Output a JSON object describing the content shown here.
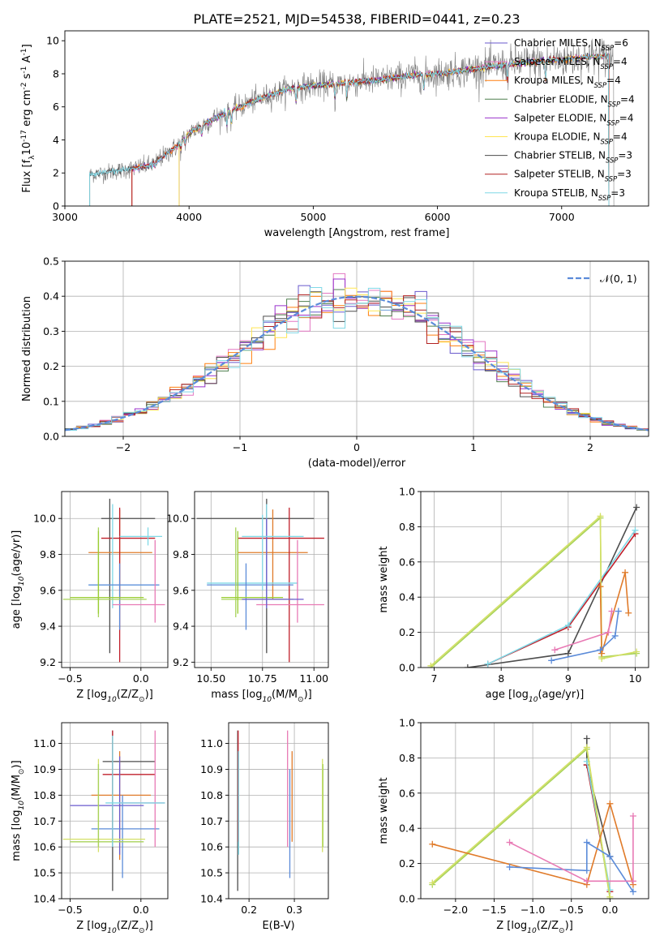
{
  "figure": {
    "title": "PLATE=2521, MJD=54538, FIBERID=0441, z=0.23"
  },
  "colors": {
    "data": "#808080",
    "model_palette": [
      "#6a5acd",
      "#e377c2",
      "#ff7f0e",
      "#4e7f4e",
      "#9932cc",
      "#ffe552",
      "#4d4d4d",
      "#b22222",
      "#7fd8e6"
    ],
    "gauss": "#5b8bd9",
    "scatter_palette": [
      "#5b8bd9",
      "#e87ab5",
      "#e07b2a",
      "#a8d35a",
      "#d4e066",
      "#c4e57f",
      "#4d4d4d",
      "#c0202b",
      "#7fd8e6",
      "#9acd32",
      "#6a5acd"
    ]
  },
  "chart_data": [
    {
      "id": "spectrum",
      "type": "line",
      "xlabel": "wavelength [Angstrom, rest frame]",
      "ylabel": "Flux [f$_\\lambda$10$^{-17}$ erg cm$^{-2}$ s$^{-1}$ A$^{-1}$]",
      "xlim": [
        3000,
        7700
      ],
      "ylim": [
        0,
        10.6
      ],
      "xticks": [
        3000,
        4000,
        5000,
        6000,
        7000
      ],
      "yticks": [
        0,
        2,
        4,
        6,
        8,
        10
      ],
      "legend_position": "right",
      "series": [
        {
          "name": "Chabrier MILES, N$_{SSP}$=6"
        },
        {
          "name": "Salpeter MILES, N$_{SSP}$=4"
        },
        {
          "name": "Kroupa MILES, N$_{SSP}$=4"
        },
        {
          "name": "Chabrier ELODIE, N$_{SSP}$=4"
        },
        {
          "name": "Salpeter ELODIE, N$_{SSP}$=4"
        },
        {
          "name": "Kroupa ELODIE, N$_{SSP}$=4"
        },
        {
          "name": "Chabrier STELIB, N$_{SSP}$=3"
        },
        {
          "name": "Salpeter STELIB, N$_{SSP}$=3"
        },
        {
          "name": "Kroupa STELIB, N$_{SSP}$=3"
        }
      ],
      "continuum": {
        "x": [
          3200,
          3500,
          3700,
          3900,
          4000,
          4200,
          4500,
          4800,
          5000,
          5200,
          5500,
          5800,
          6000,
          6300,
          6600,
          6900,
          7200,
          7400
        ],
        "y": [
          1.9,
          2.2,
          2.5,
          3.6,
          4.4,
          5.3,
          6.3,
          7.1,
          7.3,
          7.4,
          7.6,
          7.9,
          8.0,
          8.3,
          8.6,
          8.8,
          9.0,
          9.1
        ]
      },
      "model_starts": [
        3540,
        3540,
        3540,
        3920,
        3920,
        3920,
        3200,
        3540,
        3200
      ]
    },
    {
      "id": "residuals",
      "type": "line",
      "xlabel": "(data-model)/error",
      "ylabel": "Normed distribution",
      "xlim": [
        -2.5,
        2.5
      ],
      "ylim": [
        0,
        0.5
      ],
      "xticks": [
        -2,
        -1,
        0,
        1,
        2
      ],
      "yticks": [
        0.0,
        0.1,
        0.2,
        0.3,
        0.4,
        0.5
      ],
      "legend": "$\\mathcal{N}(0, 1)$",
      "legend_position": "top-right",
      "bin_width": 0.1,
      "gaussian": {
        "mu": 0,
        "sigma": 1
      }
    },
    {
      "id": "age_vs_Z",
      "type": "scatter",
      "xlabel": "Z [log$_{10}$(Z/Z$_\\odot$)]",
      "ylabel": "age  [log$_{10}$(age/yr)]",
      "xlim": [
        -0.56,
        0.19
      ],
      "ylim": [
        9.17,
        10.15
      ],
      "xticks": [
        -0.5,
        0.0
      ],
      "yticks": [
        9.2,
        9.4,
        9.6,
        9.8,
        10.0
      ],
      "points": [
        {
          "x": -0.22,
          "y": 10.0,
          "xlo": -0.28,
          "xhi": 0.1,
          "ylo": 9.25,
          "yhi": 10.11,
          "c": 6
        },
        {
          "x": -0.15,
          "y": 9.81,
          "xlo": -0.37,
          "xhi": 0.08,
          "ylo": 9.55,
          "yhi": 10.05,
          "c": 2
        },
        {
          "x": -0.15,
          "y": 9.89,
          "xlo": -0.28,
          "xhi": 0.1,
          "ylo": 9.2,
          "yhi": 10.06,
          "c": 7
        },
        {
          "x": -0.2,
          "y": 9.63,
          "xlo": -0.37,
          "xhi": 0.13,
          "ylo": 9.5,
          "yhi": 10.08,
          "c": 8
        },
        {
          "x": -0.15,
          "y": 9.63,
          "xlo": -0.37,
          "xhi": 0.13,
          "ylo": 9.38,
          "yhi": 9.75,
          "c": 0
        },
        {
          "x": -0.3,
          "y": 9.55,
          "xlo": -0.55,
          "xhi": 0.04,
          "ylo": 9.45,
          "yhi": 9.95,
          "c": 3
        },
        {
          "x": -0.3,
          "y": 9.56,
          "xlo": -0.5,
          "xhi": 0.02,
          "ylo": 9.47,
          "yhi": 9.93,
          "c": 9
        },
        {
          "x": 0.1,
          "y": 9.52,
          "xlo": -0.2,
          "xhi": 0.17,
          "ylo": 9.42,
          "yhi": 9.88,
          "c": 1
        },
        {
          "x": 0.05,
          "y": 9.9,
          "xlo": -0.15,
          "xhi": 0.15,
          "ylo": 9.85,
          "yhi": 9.95,
          "c": 8
        }
      ]
    },
    {
      "id": "age_vs_mass",
      "type": "scatter",
      "xlabel": "mass [log$_{10}$(M/M$_\\odot$)]",
      "ylabel": "",
      "xlim": [
        10.42,
        11.07
      ],
      "ylim": [
        9.17,
        10.15
      ],
      "xticks": [
        10.5,
        10.75,
        11.0
      ],
      "yticks": [
        9.2,
        9.4,
        9.6,
        9.8,
        10.0
      ],
      "points": [
        {
          "x": 10.77,
          "y": 10.0,
          "xlo": 10.43,
          "xhi": 11.0,
          "ylo": 9.25,
          "yhi": 10.11,
          "c": 6
        },
        {
          "x": 10.8,
          "y": 9.81,
          "xlo": 10.63,
          "xhi": 10.97,
          "ylo": 9.55,
          "yhi": 10.05,
          "c": 2
        },
        {
          "x": 10.88,
          "y": 9.89,
          "xlo": 10.63,
          "xhi": 11.05,
          "ylo": 9.2,
          "yhi": 10.06,
          "c": 7
        },
        {
          "x": 10.77,
          "y": 9.64,
          "xlo": 10.48,
          "xhi": 10.92,
          "ylo": 9.5,
          "yhi": 10.08,
          "c": 8
        },
        {
          "x": 10.67,
          "y": 9.63,
          "xlo": 10.48,
          "xhi": 10.9,
          "ylo": 9.38,
          "yhi": 9.75,
          "c": 0
        },
        {
          "x": 10.62,
          "y": 9.55,
          "xlo": 10.55,
          "xhi": 10.9,
          "ylo": 9.45,
          "yhi": 9.95,
          "c": 3
        },
        {
          "x": 10.63,
          "y": 9.56,
          "xlo": 10.55,
          "xhi": 10.85,
          "ylo": 9.47,
          "yhi": 9.93,
          "c": 9
        },
        {
          "x": 10.92,
          "y": 9.52,
          "xlo": 10.72,
          "xhi": 11.05,
          "ylo": 9.42,
          "yhi": 9.88,
          "c": 1
        },
        {
          "x": 10.77,
          "y": 9.55,
          "xlo": 10.65,
          "xhi": 10.95,
          "ylo": 9.5,
          "yhi": 10.0,
          "c": 10
        },
        {
          "x": 10.75,
          "y": 9.9,
          "xlo": 10.65,
          "xhi": 10.95,
          "ylo": 9.6,
          "yhi": 10.02,
          "c": 8
        }
      ]
    },
    {
      "id": "weight_vs_age",
      "type": "line",
      "xlabel": "age  [log$_{10}$(age/yr)]",
      "ylabel": "mass weight",
      "xlim": [
        6.8,
        10.2
      ],
      "ylim": [
        0,
        1.0
      ],
      "xticks": [
        7,
        8,
        9,
        10
      ],
      "yticks": [
        0.0,
        0.2,
        0.4,
        0.6,
        0.8,
        1.0
      ],
      "series": [
        {
          "c": 6,
          "x": [
            7.5,
            9.0,
            10.02
          ],
          "y": [
            0.0,
            0.08,
            0.91
          ]
        },
        {
          "c": 7,
          "x": [
            7.8,
            9.0,
            10.0
          ],
          "y": [
            0.02,
            0.23,
            0.76
          ]
        },
        {
          "c": 8,
          "x": [
            7.8,
            9.0,
            10.0
          ],
          "y": [
            0.02,
            0.24,
            0.78
          ]
        },
        {
          "c": 3,
          "x": [
            6.95,
            9.48,
            9.5,
            10.02
          ],
          "y": [
            0.0,
            0.85,
            0.06,
            0.08
          ]
        },
        {
          "c": 4,
          "x": [
            6.95,
            9.48,
            9.5,
            10.02
          ],
          "y": [
            0.01,
            0.86,
            0.05,
            0.09
          ]
        },
        {
          "c": 2,
          "x": [
            9.48,
            9.5,
            9.85,
            9.9
          ],
          "y": [
            0.46,
            0.08,
            0.54,
            0.31
          ]
        },
        {
          "c": 0,
          "x": [
            8.75,
            9.48,
            9.7,
            9.75
          ],
          "y": [
            0.04,
            0.1,
            0.18,
            0.32
          ]
        },
        {
          "c": 1,
          "x": [
            8.8,
            9.6,
            9.65
          ],
          "y": [
            0.1,
            0.2,
            0.32
          ]
        }
      ]
    },
    {
      "id": "mass_vs_Z",
      "type": "scatter",
      "xlabel": "Z [log$_{10}$(Z/Z$_\\odot$)]",
      "ylabel": "mass [log$_{10}$(M/M$_\\odot$)]",
      "xlim": [
        -0.56,
        0.19
      ],
      "ylim": [
        10.4,
        11.08
      ],
      "xticks": [
        -0.5,
        0.0
      ],
      "yticks": [
        10.4,
        10.5,
        10.6,
        10.7,
        10.8,
        10.9,
        11.0
      ],
      "points": [
        {
          "x": -0.2,
          "y": 10.93,
          "xlo": -0.27,
          "xhi": 0.1,
          "ylo": 10.43,
          "yhi": 11.05,
          "c": 6
        },
        {
          "x": -0.2,
          "y": 10.88,
          "xlo": -0.27,
          "xhi": 0.1,
          "ylo": 10.62,
          "yhi": 11.05,
          "c": 7
        },
        {
          "x": -0.15,
          "y": 10.8,
          "xlo": -0.35,
          "xhi": 0.07,
          "ylo": 10.55,
          "yhi": 10.97,
          "c": 2
        },
        {
          "x": -0.15,
          "y": 10.76,
          "xlo": -0.5,
          "xhi": 0.02,
          "ylo": 10.57,
          "yhi": 10.95,
          "c": 10
        },
        {
          "x": -0.13,
          "y": 10.67,
          "xlo": -0.35,
          "xhi": 0.13,
          "ylo": 10.48,
          "yhi": 10.8,
          "c": 0
        },
        {
          "x": -0.3,
          "y": 10.63,
          "xlo": -0.55,
          "xhi": 0.03,
          "ylo": 10.58,
          "yhi": 10.94,
          "c": 4
        },
        {
          "x": -0.3,
          "y": 10.62,
          "xlo": -0.5,
          "xhi": 0.02,
          "ylo": 10.6,
          "yhi": 10.92,
          "c": 3
        },
        {
          "x": 0.1,
          "y": 10.77,
          "xlo": -0.15,
          "xhi": 0.17,
          "ylo": 10.6,
          "yhi": 11.05,
          "c": 1
        },
        {
          "x": -0.2,
          "y": 10.77,
          "xlo": -0.25,
          "xhi": 0.17,
          "ylo": 10.6,
          "yhi": 11.03,
          "c": 8
        }
      ]
    },
    {
      "id": "mass_vs_ebv",
      "type": "scatter",
      "xlabel": "E(B-V)",
      "ylabel": "",
      "xlim": [
        0.155,
        0.375
      ],
      "ylim": [
        10.4,
        11.08
      ],
      "xticks": [
        0.2,
        0.3
      ],
      "yticks": [
        10.4,
        10.5,
        10.6,
        10.7,
        10.8,
        10.9,
        11.0
      ],
      "points": [
        {
          "x": 0.175,
          "y": 10.93,
          "ylo": 10.43,
          "yhi": 11.05,
          "c": 6
        },
        {
          "x": 0.176,
          "y": 10.88,
          "ylo": 10.62,
          "yhi": 11.05,
          "c": 7
        },
        {
          "x": 0.177,
          "y": 10.76,
          "ylo": 10.57,
          "yhi": 10.97,
          "c": 8
        },
        {
          "x": 0.285,
          "y": 10.77,
          "ylo": 10.6,
          "yhi": 11.05,
          "c": 1
        },
        {
          "x": 0.29,
          "y": 10.67,
          "ylo": 10.48,
          "yhi": 10.9,
          "c": 0
        },
        {
          "x": 0.295,
          "y": 10.8,
          "ylo": 10.62,
          "yhi": 10.97,
          "c": 2
        },
        {
          "x": 0.362,
          "y": 10.63,
          "ylo": 10.58,
          "yhi": 10.94,
          "c": 4
        },
        {
          "x": 0.363,
          "y": 10.62,
          "ylo": 10.6,
          "yhi": 10.92,
          "c": 3
        },
        {
          "x": 0.365,
          "y": 10.88,
          "ylo": 10.6,
          "yhi": 10.95,
          "c": 11
        }
      ]
    },
    {
      "id": "weight_vs_Z",
      "type": "line",
      "xlabel": "Z [log$_{10}$(Z/Z$_\\odot$)]",
      "ylabel": "mass weight",
      "xlim": [
        -2.45,
        0.5
      ],
      "ylim": [
        0,
        1.0
      ],
      "xticks": [
        -2.0,
        -1.5,
        -1.0,
        -0.5,
        0.0
      ],
      "yticks": [
        0.0,
        0.2,
        0.4,
        0.6,
        0.8,
        1.0
      ],
      "series": [
        {
          "c": 6,
          "x": [
            -0.3,
            -0.3,
            0.0
          ],
          "y": [
            0.91,
            0.76,
            0.24
          ]
        },
        {
          "c": 7,
          "x": [
            -0.3,
            0.0
          ],
          "y": [
            0.76,
            0.04
          ]
        },
        {
          "c": 8,
          "x": [
            -0.3,
            0.0
          ],
          "y": [
            0.78,
            0.05
          ]
        },
        {
          "c": 3,
          "x": [
            -2.3,
            -0.3,
            0.0
          ],
          "y": [
            0.08,
            0.85,
            0.0
          ]
        },
        {
          "c": 4,
          "x": [
            -2.3,
            -0.3,
            0.0
          ],
          "y": [
            0.09,
            0.86,
            0.01
          ]
        },
        {
          "c": 2,
          "x": [
            -2.3,
            -0.3,
            0.0,
            0.3
          ],
          "y": [
            0.31,
            0.08,
            0.54,
            0.08
          ]
        },
        {
          "c": 0,
          "x": [
            -1.3,
            -0.3,
            -0.3,
            0.0,
            0.3
          ],
          "y": [
            0.18,
            0.16,
            0.32,
            0.24,
            0.04
          ]
        },
        {
          "c": 1,
          "x": [
            -1.3,
            -0.3,
            0.3,
            0.3
          ],
          "y": [
            0.32,
            0.1,
            0.1,
            0.47
          ]
        }
      ]
    }
  ]
}
